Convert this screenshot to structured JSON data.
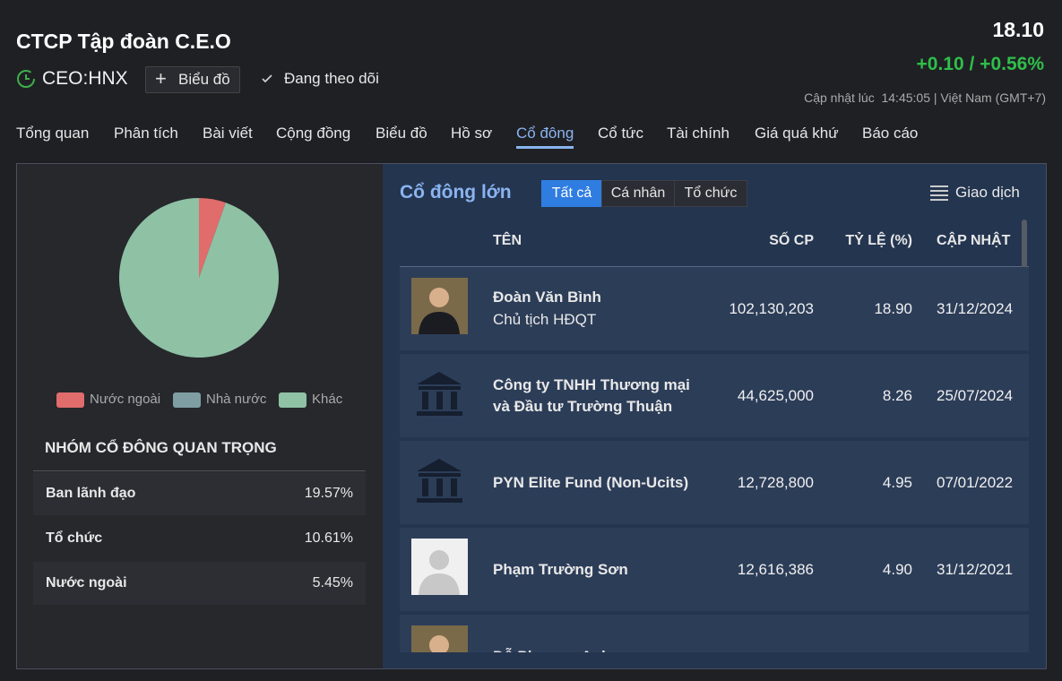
{
  "header": {
    "title": "CTCP Tập đoàn C.E.O",
    "ticker": "CEO:HNX",
    "chart_button": "Biểu đồ",
    "follow": "Đang theo dõi",
    "price": "18.10",
    "change": "+0.10 / +0.56%",
    "updated": "Cập nhật lúc  14:45:05 | Việt Nam (GMT+7)"
  },
  "tabs": [
    "Tổng quan",
    "Phân tích",
    "Bài viết",
    "Cộng đồng",
    "Biểu đồ",
    "Hồ sơ",
    "Cổ đông",
    "Cổ tức",
    "Tài chính",
    "Giá quá khứ",
    "Báo cáo"
  ],
  "active_tab": 6,
  "chart_data": {
    "type": "pie",
    "categories": [
      "Nước ngoài",
      "Nhà nước",
      "Khác"
    ],
    "values": [
      5.45,
      0,
      94.55
    ],
    "colors": [
      "#e06c6c",
      "#7f9ea3",
      "#8fc1a5"
    ]
  },
  "key_groups": {
    "title": "NHÓM CỔ ĐÔNG QUAN TRỌNG",
    "rows": [
      [
        "Ban lãnh đạo",
        "19.57%"
      ],
      [
        "Tổ chức",
        "10.61%"
      ],
      [
        "Nước ngoài",
        "5.45%"
      ]
    ]
  },
  "shareholders": {
    "title": "Cổ đông lớn",
    "filters": [
      "Tất cả",
      "Cá nhân",
      "Tổ chức"
    ],
    "active_filter": 0,
    "trade_button": "Giao dịch",
    "columns": [
      "TÊN",
      "SỐ CP",
      "TỶ LỆ (%)",
      "CẬP NHẬT"
    ],
    "rows": [
      {
        "name": "Đoàn Văn Bình",
        "role": "Chủ tịch HĐQT",
        "shares": "102,130,203",
        "ratio": "18.90",
        "date": "31/12/2024"
      },
      {
        "name": "Công ty TNHH Thương mại và Đầu tư Trường Thuận",
        "shares": "44,625,000",
        "ratio": "8.26",
        "date": "25/07/2024"
      },
      {
        "name": "PYN Elite Fund (Non-Ucits)",
        "shares": "12,728,800",
        "ratio": "4.95",
        "date": "07/01/2022"
      },
      {
        "name": "Phạm Trường Sơn",
        "shares": "12,616,386",
        "ratio": "4.90",
        "date": "31/12/2021"
      },
      {
        "name": "Đỗ Phương Anh"
      }
    ]
  }
}
